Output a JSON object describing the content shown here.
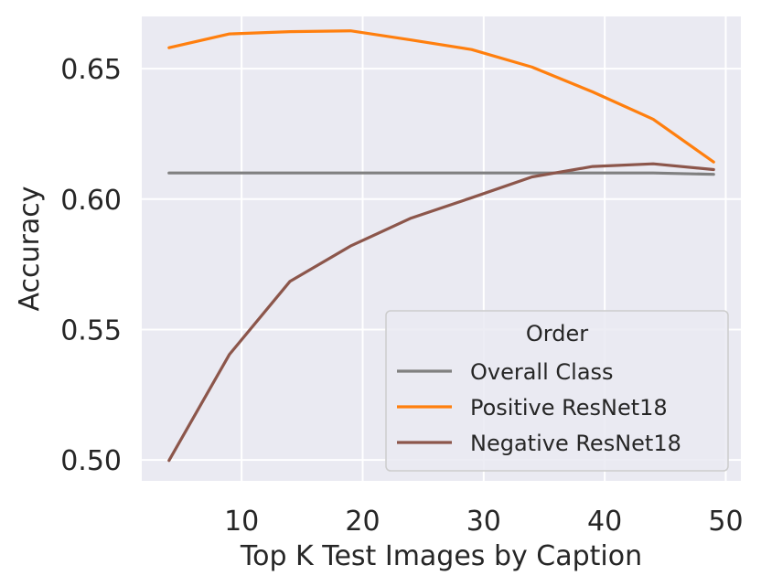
{
  "chart_data": {
    "type": "line",
    "title": "",
    "xlabel": "Top K Test Images by Caption",
    "ylabel": "Accuracy",
    "xlim": [
      1.75,
      51.25
    ],
    "ylim": [
      0.492,
      0.67
    ],
    "xticks": [
      10,
      20,
      30,
      40,
      50
    ],
    "yticks": [
      0.5,
      0.55,
      0.6,
      0.65
    ],
    "xtick_labels": [
      "10",
      "20",
      "30",
      "40",
      "50"
    ],
    "ytick_labels": [
      "0.50",
      "0.55",
      "0.60",
      "0.65"
    ],
    "grid": true,
    "legend": {
      "title": "Order",
      "placement": "lower right"
    },
    "x": [
      4,
      9,
      14,
      19,
      24,
      29,
      34,
      39,
      44,
      49
    ],
    "series": [
      {
        "name": "Overall Class",
        "color": "#808080",
        "values": [
          0.61,
          0.61,
          0.61,
          0.61,
          0.61,
          0.61,
          0.61,
          0.61,
          0.61,
          0.6095
        ]
      },
      {
        "name": "Positive ResNet18",
        "color": "#ff7f0e",
        "values": [
          0.658,
          0.6633,
          0.6642,
          0.6645,
          0.661,
          0.6573,
          0.6506,
          0.6411,
          0.6306,
          0.6142
        ]
      },
      {
        "name": "Negative ResNet18",
        "color": "#8c564b",
        "values": [
          0.4998,
          0.5405,
          0.5685,
          0.582,
          0.5927,
          0.6005,
          0.6085,
          0.6125,
          0.6135,
          0.6113
        ]
      }
    ]
  },
  "style": {
    "plot_background": "#eaeaf2",
    "grid_color": "#ffffff",
    "text_color": "#262626",
    "legend_background": "#eaeaf2",
    "legend_border": "#cccccc"
  }
}
